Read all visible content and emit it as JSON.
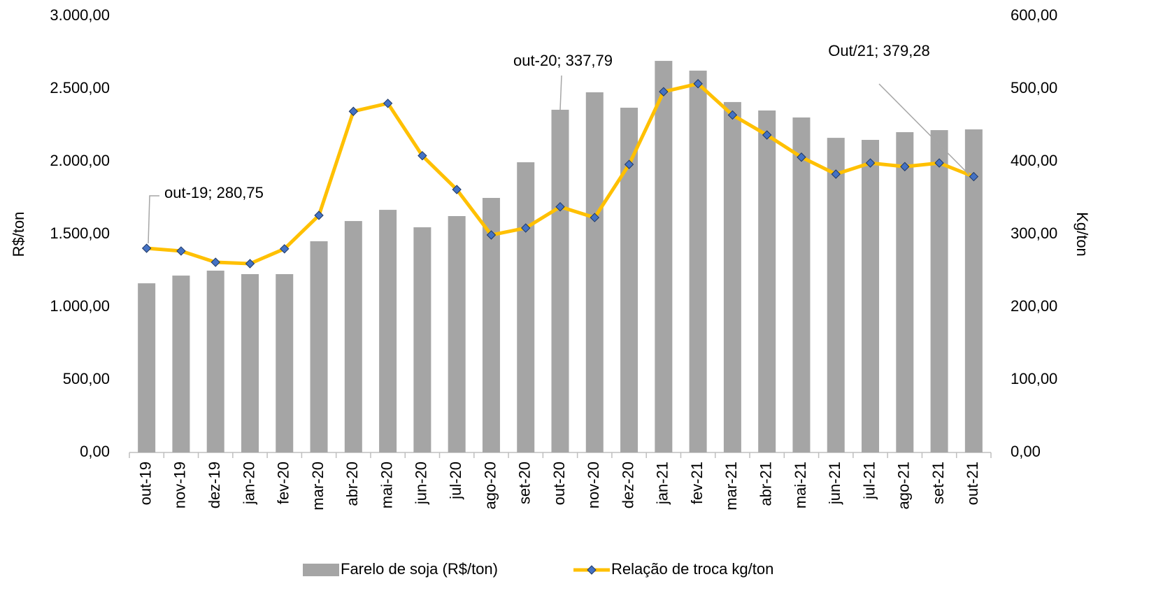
{
  "chart_data": {
    "type": "bar_line",
    "y_label": "R$/ton",
    "y2_label": "Kg/ton",
    "categories": [
      "out-19",
      "nov-19",
      "dez-19",
      "jan-20",
      "fev-20",
      "mar-20",
      "abr-20",
      "mai-20",
      "jun-20",
      "jul-20",
      "ago-20",
      "set-20",
      "out-20",
      "nov-20",
      "dez-20",
      "jan-21",
      "fev-21",
      "mar-21",
      "abr-21",
      "mai-21",
      "jun-21",
      "jul-21",
      "ago-21",
      "set-21",
      "out-21"
    ],
    "series": [
      {
        "name": "Farelo de soja (R$/ton)",
        "type": "bar",
        "color": "#a5a5a5",
        "values": [
          1163,
          1216,
          1250,
          1226,
          1226,
          1452,
          1591,
          1668,
          1548,
          1625,
          1750,
          1995,
          2356,
          2476,
          2370,
          2692,
          2625,
          2409,
          2351,
          2303,
          2163,
          2149,
          2202,
          2216,
          2221
        ]
      },
      {
        "name": "Relação de troca kg/ton",
        "type": "line",
        "axis": "y2",
        "color": "#ffc000",
        "marker_color": "#4472c4",
        "values": [
          280.75,
          277,
          261.5,
          259.6,
          280,
          326,
          469,
          480,
          408,
          361.5,
          299,
          308.6,
          337.79,
          323,
          396,
          496,
          507,
          464,
          436.5,
          406,
          382.7,
          398,
          393,
          398,
          379.28
        ],
        "value_labels": [
          "out-19; 280,75",
          null,
          null,
          null,
          null,
          null,
          null,
          null,
          null,
          null,
          null,
          null,
          "out-20; 337,79",
          null,
          null,
          null,
          null,
          null,
          null,
          null,
          null,
          null,
          null,
          null,
          "Out/21; 379,28"
        ]
      }
    ],
    "ylim": [
      0,
      3000
    ],
    "yticks": [
      {
        "value": 0,
        "label": "0,00"
      },
      {
        "value": 500,
        "label": "500,00"
      },
      {
        "value": 1000,
        "label": "1.000,00"
      },
      {
        "value": 1500,
        "label": "1.500,00"
      },
      {
        "value": 2000,
        "label": "2.000,00"
      },
      {
        "value": 2500,
        "label": "2.500,00"
      },
      {
        "value": 3000,
        "label": "3.000,00"
      }
    ],
    "y2lim": [
      0,
      600
    ],
    "y2ticks": [
      {
        "value": 0,
        "label": "0,00"
      },
      {
        "value": 100,
        "label": "100,00"
      },
      {
        "value": 200,
        "label": "200,00"
      },
      {
        "value": 300,
        "label": "300,00"
      },
      {
        "value": 400,
        "label": "400,00"
      },
      {
        "value": 500,
        "label": "500,00"
      },
      {
        "value": 600,
        "label": "600,00"
      }
    ],
    "legend": "bottom"
  }
}
